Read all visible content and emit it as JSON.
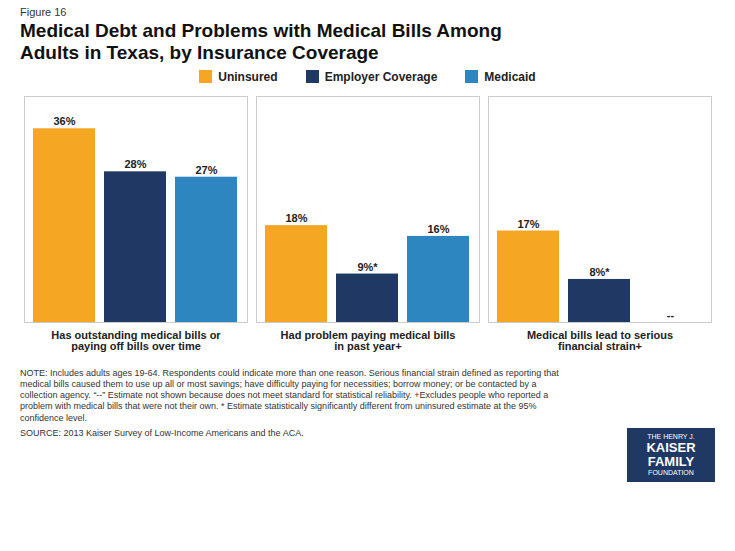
{
  "chart_data": {
    "type": "bar",
    "title": "Medical Debt and Problems with Medical Bills Among\nAdults in Texas, by Insurance Coverage",
    "categories": [
      "Has outstanding medical bills or\npaying off bills over time",
      "Had problem paying medical bills\nin past year+",
      "Medical bills lead to serious\nfinancial strain+"
    ],
    "series": [
      {
        "name": "Uninsured",
        "color": "#F5A623",
        "values": [
          36,
          18,
          17
        ],
        "value_labels": [
          "36%",
          "18%",
          "17%"
        ]
      },
      {
        "name": "Employer Coverage",
        "color": "#1F3864",
        "values": [
          28,
          9,
          8
        ],
        "value_labels": [
          "28%",
          "9%*",
          "8%*"
        ]
      },
      {
        "name": "Medicaid",
        "color": "#2E86C1",
        "values": [
          27,
          16,
          0
        ],
        "value_labels": [
          "27%",
          "16%",
          "--"
        ]
      }
    ],
    "ylim": [
      0,
      42
    ],
    "grid": false,
    "legend": "top",
    "data_labels": true,
    "tick_labels": "x",
    "annotations": [
      {
        "text": "Figure 16"
      },
      {
        "text": "NOTE: Includes adults ages 19-64. Respondents could indicate more than one reason. Serious financial strain defined as reporting that\nmedical bills caused them to use up all or most savings; have difficulty paying for necessities; borrow money; or be contacted by a\ncollection agency. “--” Estimate not shown because does not meet standard for statistical reliability. +Excludes people who reported a\nproblem with medical bills that were not their own. * Estimate statistically significantly different from uninsured estimate at the 95%\nconfidence level."
      },
      {
        "text": "SOURCE: 2013 Kaiser Survey of Low-Income Americans and the ACA."
      },
      {
        "text": "THE HENRY J.\nKAISER\nFAMILY\nFOUNDATION",
        "color": "#1F3864"
      }
    ]
  }
}
